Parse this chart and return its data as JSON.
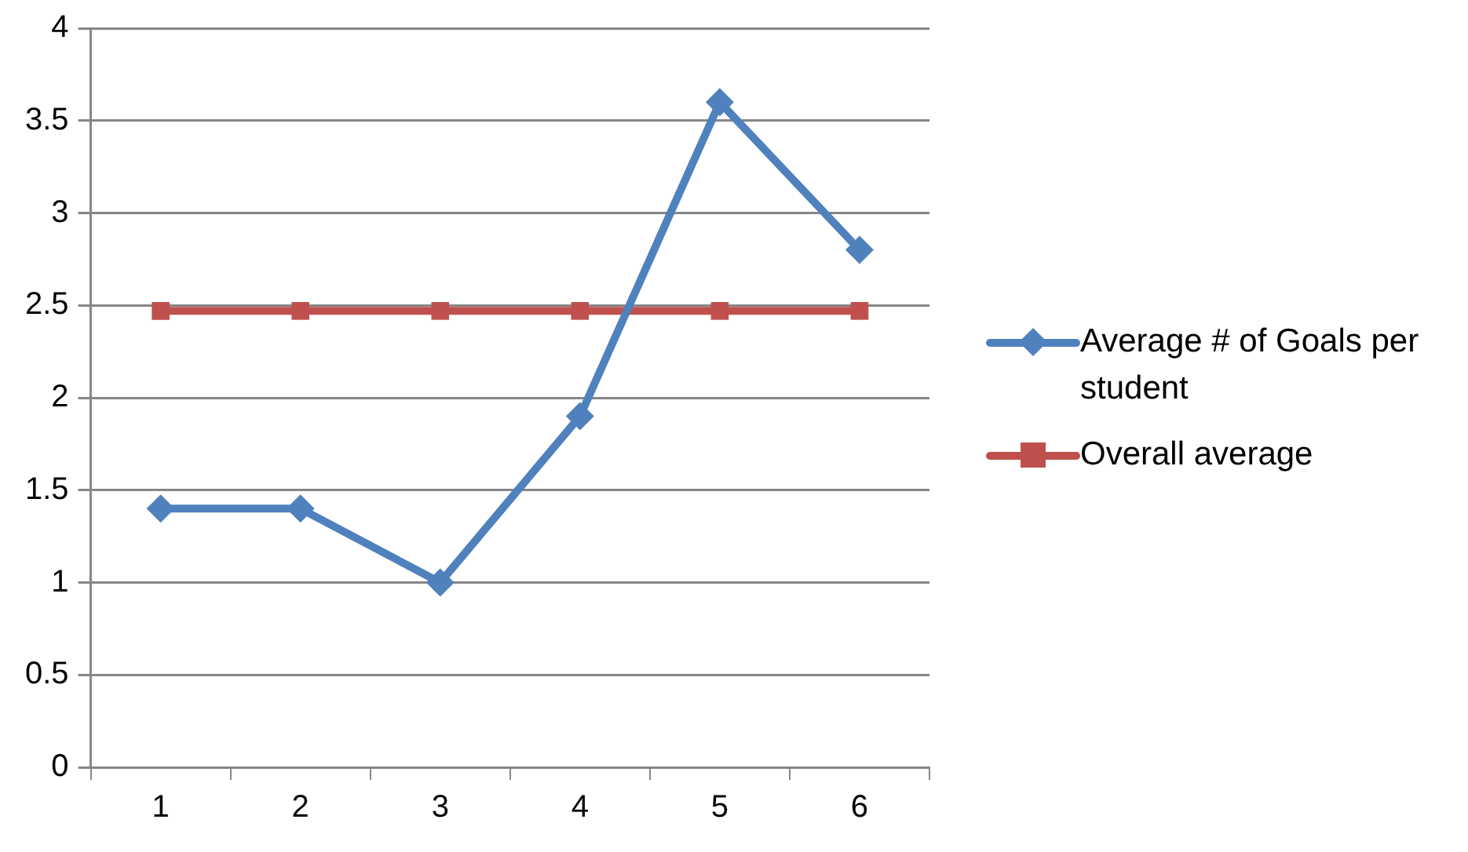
{
  "chart_data": {
    "type": "line",
    "categories": [
      "1",
      "2",
      "3",
      "4",
      "5",
      "6"
    ],
    "series": [
      {
        "name": "Average # of Goals per student",
        "color": "#4f81bd",
        "marker": "diamond",
        "values": [
          1.4,
          1.4,
          1.0,
          1.9,
          3.6,
          2.8
        ]
      },
      {
        "name": "Overall average",
        "color": "#c0504d",
        "marker": "square",
        "values": [
          2.47,
          2.47,
          2.47,
          2.47,
          2.47,
          2.47
        ]
      }
    ],
    "ylim": [
      0,
      4
    ],
    "yticks": [
      0,
      0.5,
      1,
      1.5,
      2,
      2.5,
      3,
      3.5,
      4
    ],
    "grid": "y",
    "legend": "right"
  }
}
